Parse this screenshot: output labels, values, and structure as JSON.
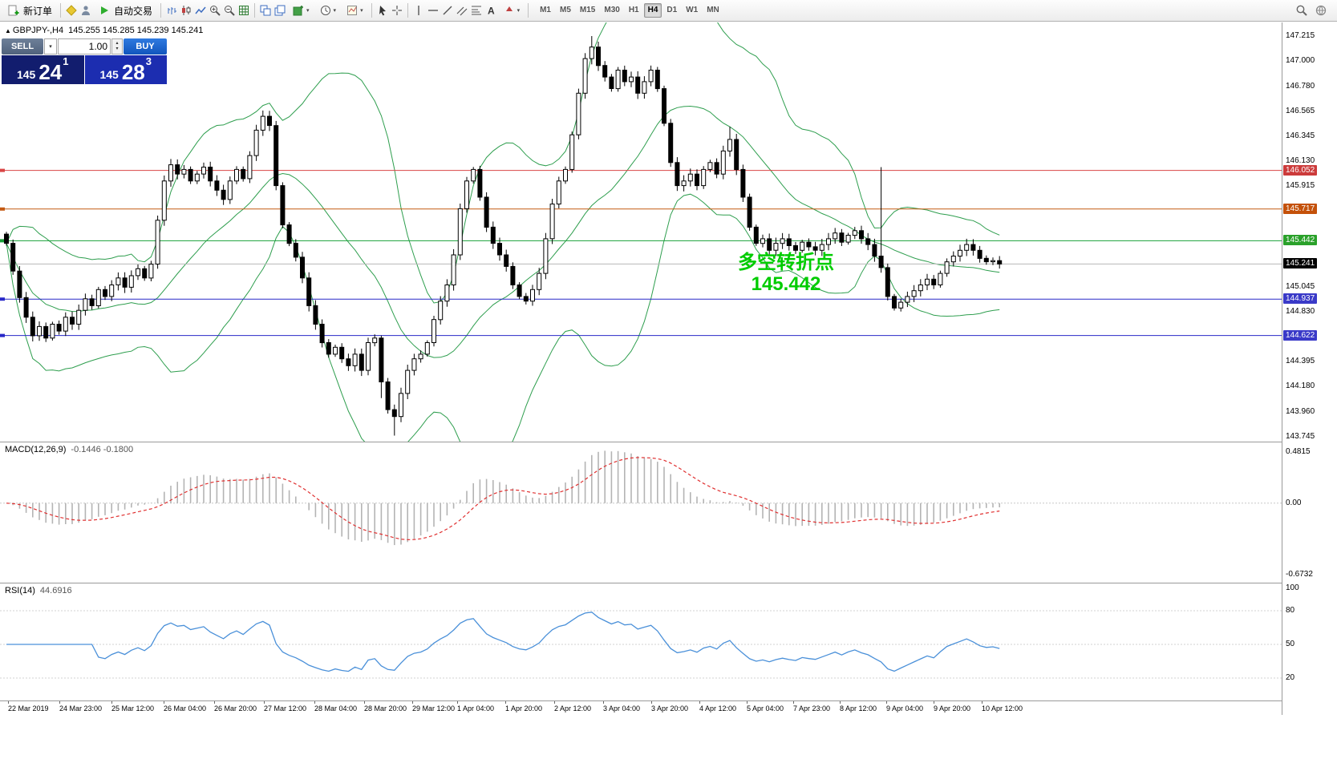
{
  "toolbar": {
    "new_order": "新订单",
    "autotrading": "自动交易",
    "timeframes": [
      "M1",
      "M5",
      "M15",
      "M30",
      "H1",
      "H4",
      "D1",
      "W1",
      "MN"
    ],
    "active_timeframe": "H4"
  },
  "chart": {
    "title": "GBPJPY-,H4",
    "ohlc": "145.255 145.285 145.239 145.241",
    "trade_panel": {
      "sell_label": "SELL",
      "buy_label": "BUY",
      "volume": "1.00",
      "sell_small": "145",
      "sell_big": "24",
      "sell_sup": "1",
      "buy_small": "145",
      "buy_big": "28",
      "buy_sup": "3"
    },
    "annotation": {
      "line1": "多空转折点",
      "line2": "145.442"
    },
    "axis": {
      "min": 143.703,
      "max": 147.333,
      "ticks": [
        147.215,
        147.0,
        146.78,
        146.565,
        146.345,
        146.13,
        145.915,
        145.045,
        144.83,
        144.395,
        144.18,
        143.96,
        143.745
      ]
    },
    "levels": [
      {
        "price": 146.052,
        "label": "146.052",
        "line": "#d94545",
        "badge": "#cc3b3b"
      },
      {
        "price": 145.717,
        "label": "145.717",
        "line": "#c45a12",
        "badge": "#c4510a"
      },
      {
        "price": 145.442,
        "label": "145.442",
        "line": "#18a038",
        "badge": "#2aa12a"
      },
      {
        "price": 144.937,
        "label": "144.937",
        "line": "#2828c8",
        "badge": "#3a3ac8"
      },
      {
        "price": 144.622,
        "label": "144.622",
        "line": "#2828c8",
        "badge": "#3a3ac8"
      }
    ],
    "current_price": 145.241,
    "current_label": "145.241",
    "band_color": "#2e9e4e",
    "series": {
      "x0": 8,
      "dx": 8.2,
      "body_w": 5,
      "open0": 145.5,
      "closes": [
        145.42,
        145.18,
        144.95,
        144.78,
        144.62,
        144.7,
        144.6,
        144.72,
        144.66,
        144.78,
        144.72,
        144.84,
        144.94,
        144.88,
        145.02,
        144.96,
        145.06,
        145.12,
        145.04,
        145.14,
        145.2,
        145.12,
        145.24,
        145.62,
        145.96,
        146.1,
        146.02,
        146.06,
        145.96,
        146.02,
        146.08,
        145.96,
        145.88,
        145.8,
        145.96,
        146.06,
        145.98,
        146.18,
        146.4,
        146.52,
        146.44,
        145.92,
        145.58,
        145.42,
        145.3,
        145.12,
        144.88,
        144.72,
        144.56,
        144.46,
        144.52,
        144.42,
        144.36,
        144.46,
        144.32,
        144.56,
        144.6,
        144.22,
        143.98,
        143.92,
        144.12,
        144.32,
        144.42,
        144.46,
        144.56,
        144.76,
        144.92,
        145.06,
        145.32,
        145.72,
        145.96,
        146.06,
        145.82,
        145.56,
        145.42,
        145.32,
        145.22,
        145.06,
        144.96,
        144.92,
        145.02,
        145.16,
        145.46,
        145.76,
        145.96,
        146.06,
        146.36,
        146.72,
        147.02,
        147.12,
        146.96,
        146.86,
        146.76,
        146.92,
        146.82,
        146.86,
        146.72,
        146.82,
        146.92,
        146.76,
        146.46,
        146.12,
        145.92,
        145.96,
        146.02,
        145.92,
        146.06,
        146.12,
        146.02,
        146.22,
        146.32,
        146.06,
        145.82,
        145.56,
        145.42,
        145.46,
        145.36,
        145.42,
        145.46,
        145.4,
        145.36,
        145.43,
        145.39,
        145.36,
        145.41,
        145.46,
        145.51,
        145.43,
        145.49,
        145.53,
        145.46,
        145.41,
        145.31,
        145.21,
        144.96,
        144.86,
        144.91,
        144.96,
        145.01,
        145.06,
        145.11,
        145.06,
        145.16,
        145.26,
        145.31,
        145.36,
        145.41,
        145.36,
        145.29,
        145.26,
        145.27,
        145.241
      ],
      "wick_overrides": {
        "57": {
          "low": 144.08
        },
        "59": {
          "low": 143.755
        },
        "89": {
          "high": 147.215
        },
        "110": {
          "high": 146.43
        },
        "133": {
          "high": 146.08
        }
      }
    }
  },
  "macd": {
    "name": "MACD(12,26,9)",
    "values": "-0.1446 -0.1800",
    "axis_labels": [
      "0.4815",
      "0.00",
      "-0.6732"
    ],
    "range": {
      "max": 0.4815,
      "min": -0.6732
    },
    "hist_color": "#b4b4b4",
    "signal_color": "#e03030",
    "params": {
      "fast": 12,
      "slow": 26,
      "signal": 9
    }
  },
  "rsi": {
    "name": "RSI(14)",
    "value": "44.6916",
    "axis_labels": [
      100,
      80,
      50,
      20
    ],
    "levels": [
      80,
      50,
      20
    ],
    "line_color": "#4a90d9",
    "period": 14
  },
  "time_axis": {
    "labels": [
      "22 Mar 2019",
      "24 Mar 23:00",
      "25 Mar 12:00",
      "26 Mar 04:00",
      "26 Mar 20:00",
      "27 Mar 12:00",
      "28 Mar 04:00",
      "28 Mar 20:00",
      "29 Mar 12:00",
      "1 Apr 04:00",
      "1 Apr 20:00",
      "2 Apr 12:00",
      "3 Apr 04:00",
      "3 Apr 20:00",
      "4 Apr 12:00",
      "5 Apr 04:00",
      "7 Apr 23:00",
      "8 Apr 12:00",
      "9 Apr 04:00",
      "9 Apr 20:00",
      "10 Apr 12:00"
    ],
    "x": [
      10,
      74,
      139,
      204,
      267,
      329,
      392,
      454,
      514,
      570,
      630,
      691,
      752,
      812,
      872,
      931,
      989,
      1047,
      1105,
      1164,
      1224
    ]
  },
  "chart_data": {
    "type": "candlestick-with-indicators",
    "symbol": "GBPJPY-",
    "timeframe": "H4",
    "price_range": [
      143.703,
      147.333
    ],
    "indicators": [
      "Bollinger Bands (green)",
      "MACD(12,26,9)",
      "RSI(14)"
    ],
    "note": "closes array under chart.series holds the candle data; opens derive from previous close"
  }
}
